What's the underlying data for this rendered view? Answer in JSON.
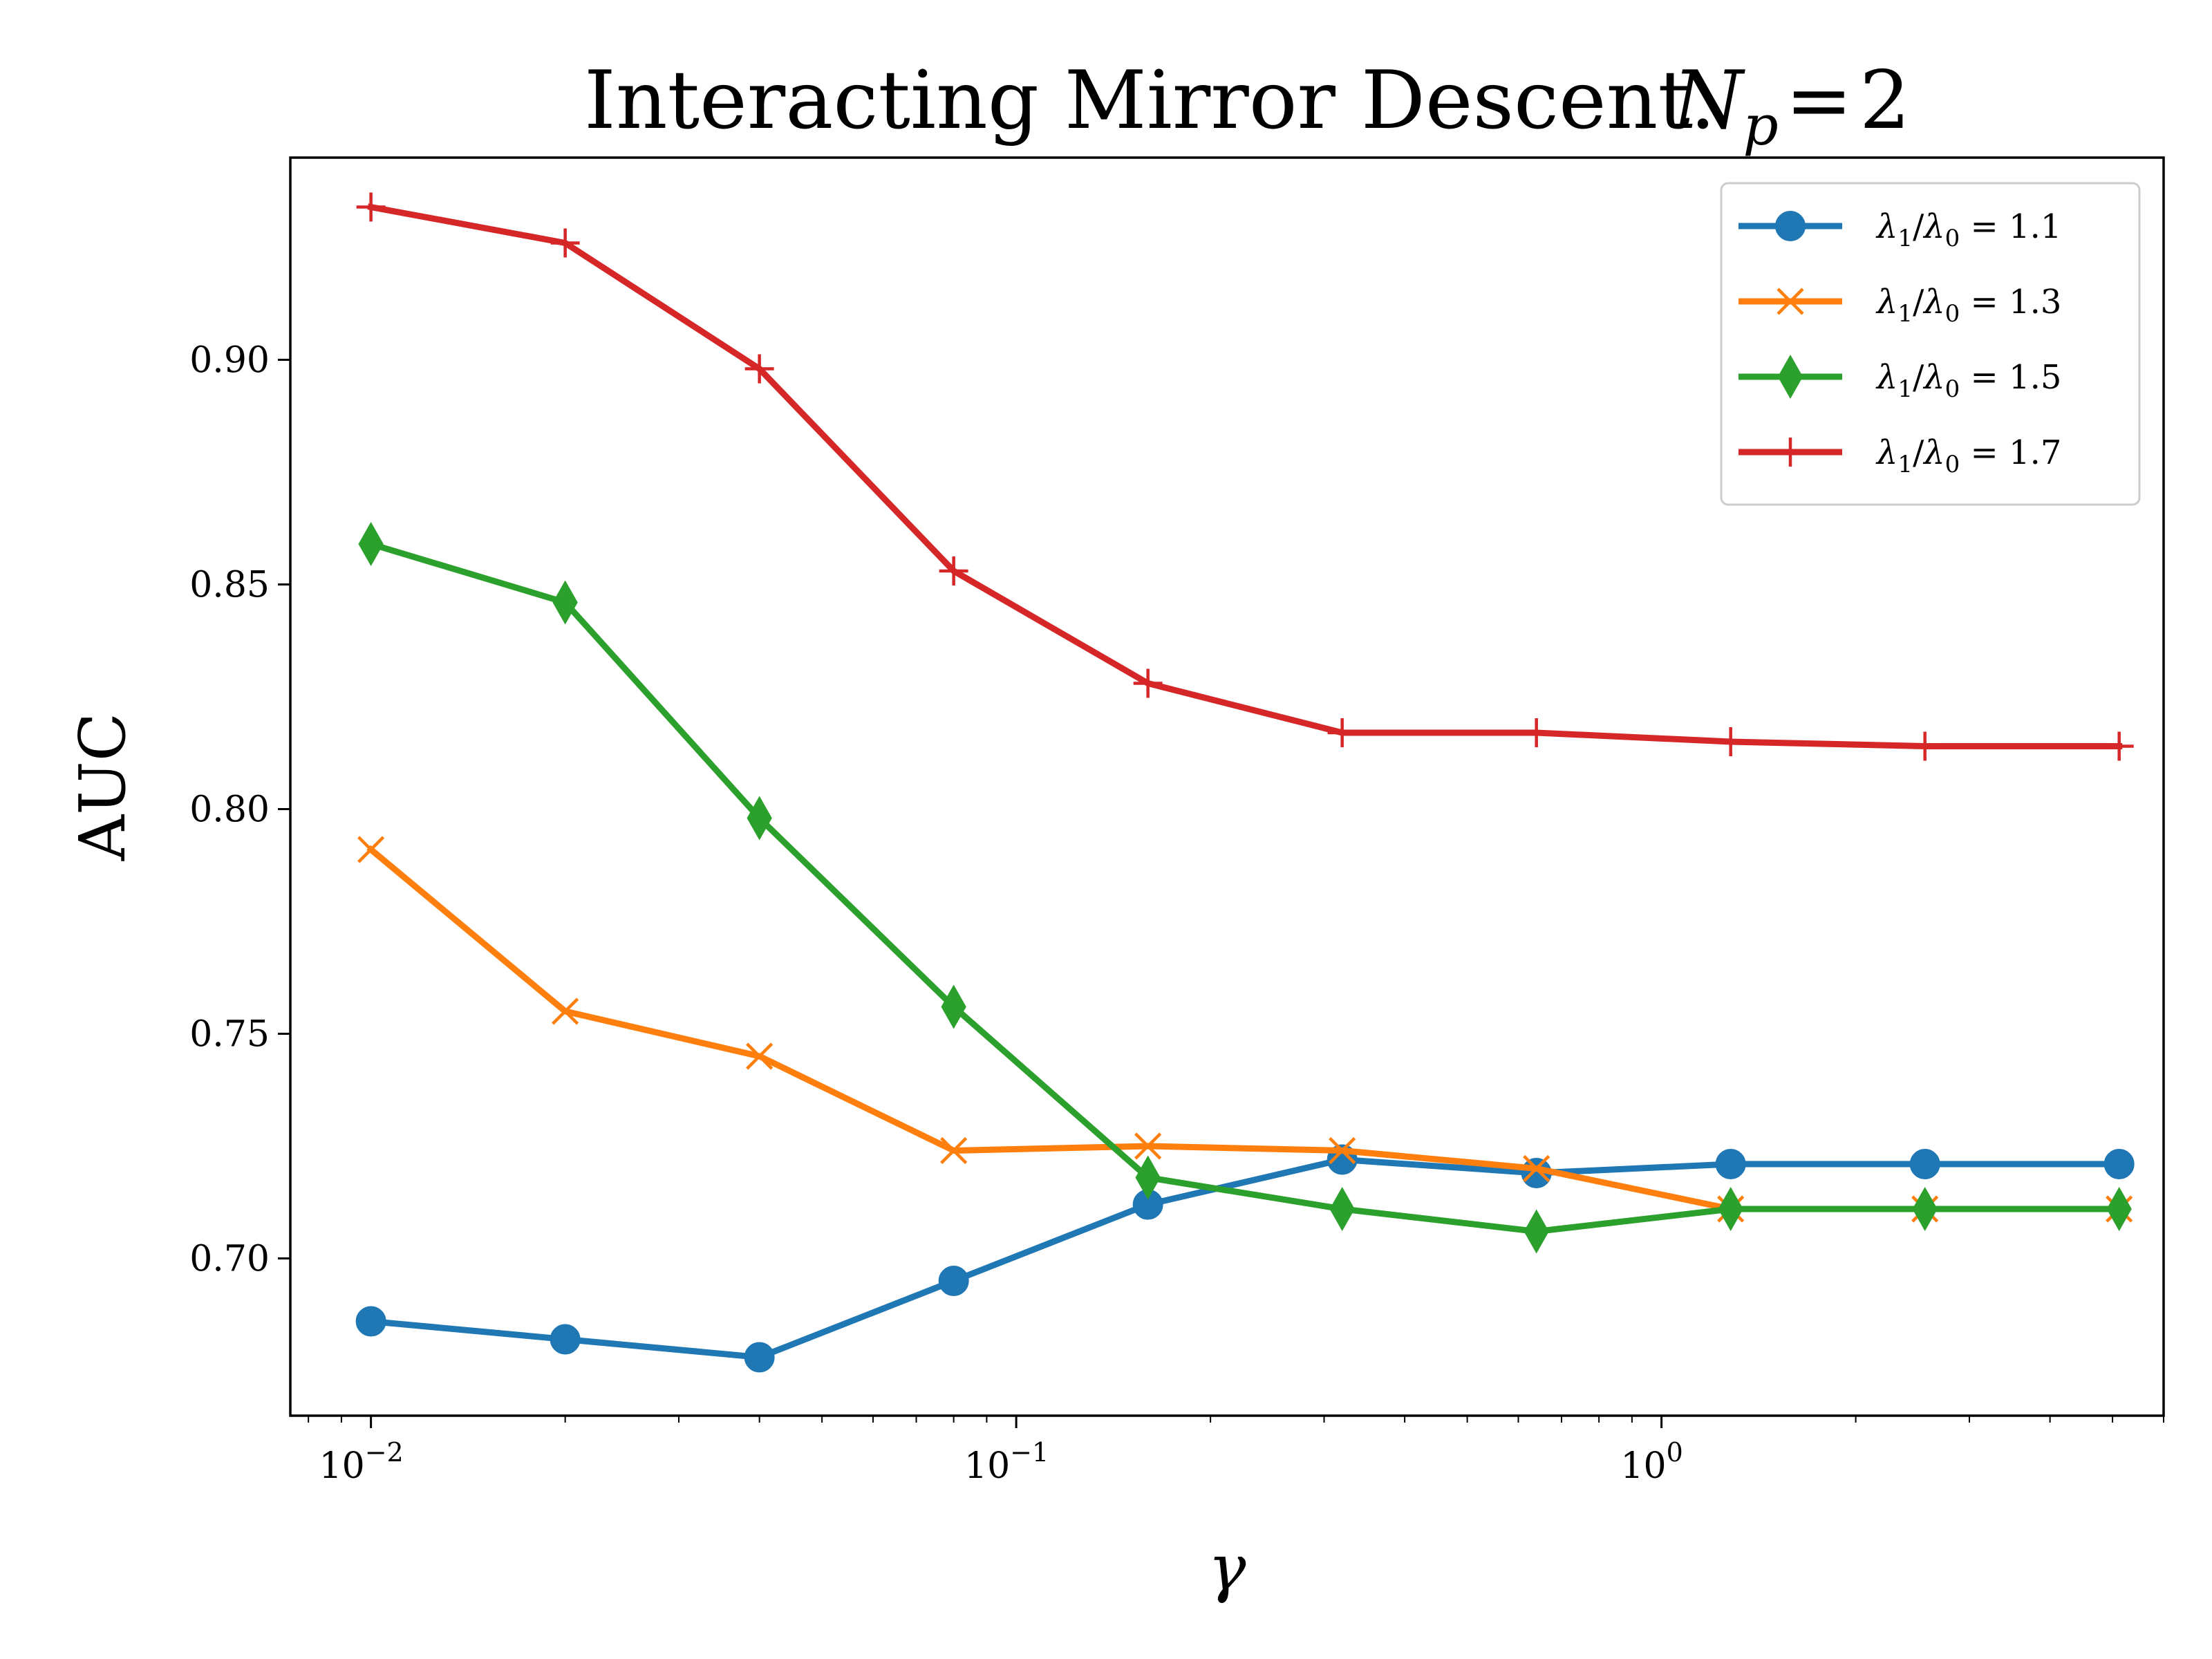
{
  "chart_data": {
    "type": "line",
    "title": "Interacting Mirror Descent.",
    "title_math": {
      "symbol": "N",
      "subscript": "p",
      "relation": "=",
      "value": "2"
    },
    "xlabel": "γ",
    "ylabel": "AUC",
    "x_scale": "log",
    "xlim": [
      0.0075,
      6.0
    ],
    "ylim": [
      0.665,
      0.945
    ],
    "x_ticks": [
      {
        "value": 0.01,
        "base": "10",
        "exp": "−2"
      },
      {
        "value": 0.1,
        "base": "10",
        "exp": "−1"
      },
      {
        "value": 1,
        "base": "10",
        "exp": "0"
      }
    ],
    "y_ticks": [
      {
        "value": 0.7,
        "label": "0.70"
      },
      {
        "value": 0.75,
        "label": "0.75"
      },
      {
        "value": 0.8,
        "label": "0.80"
      },
      {
        "value": 0.85,
        "label": "0.85"
      },
      {
        "value": 0.9,
        "label": "0.90"
      }
    ],
    "x": [
      0.01,
      0.02,
      0.04,
      0.08,
      0.16,
      0.32,
      0.64,
      1.28,
      2.56,
      5.12
    ],
    "series": [
      {
        "name": "λ1/λ0 = 1.1",
        "legend": {
          "num": "λ",
          "num_sub": "1",
          "den": "λ",
          "den_sub": "0",
          "value": "1.1"
        },
        "color": "#1f77b4",
        "marker": "circle",
        "values": [
          0.686,
          0.682,
          0.678,
          0.695,
          0.712,
          0.722,
          0.719,
          0.721,
          0.721,
          0.721
        ]
      },
      {
        "name": "λ1/λ0 = 1.3",
        "legend": {
          "num": "λ",
          "num_sub": "1",
          "den": "λ",
          "den_sub": "0",
          "value": "1.3"
        },
        "color": "#ff7f0e",
        "marker": "x",
        "values": [
          0.791,
          0.755,
          0.745,
          0.724,
          0.725,
          0.724,
          0.72,
          0.711,
          0.711,
          0.711
        ]
      },
      {
        "name": "λ1/λ0 = 1.5",
        "legend": {
          "num": "λ",
          "num_sub": "1",
          "den": "λ",
          "den_sub": "0",
          "value": "1.5"
        },
        "color": "#2ca02c",
        "marker": "thin_diamond",
        "values": [
          0.859,
          0.846,
          0.798,
          0.756,
          0.718,
          0.711,
          0.706,
          0.711,
          0.711,
          0.711
        ]
      },
      {
        "name": "λ1/λ0 = 1.7",
        "legend": {
          "num": "λ",
          "num_sub": "1",
          "den": "λ",
          "den_sub": "0",
          "value": "1.7"
        },
        "color": "#d62728",
        "marker": "plus",
        "values": [
          0.934,
          0.926,
          0.898,
          0.853,
          0.828,
          0.817,
          0.817,
          0.815,
          0.814,
          0.814
        ]
      }
    ],
    "legend_position": "top-right",
    "grid": false
  }
}
